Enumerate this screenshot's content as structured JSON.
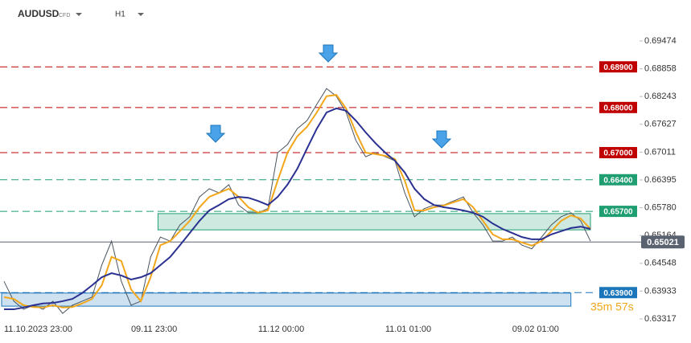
{
  "header": {
    "symbol": "AUDUSD",
    "badge": "CFD",
    "timeframe": "H1"
  },
  "chart_data": {
    "type": "line",
    "categories": [
      "11.10.2023 23:00",
      null,
      null,
      null,
      null,
      null,
      null,
      null,
      null,
      null,
      null,
      null,
      null,
      "09.11 23:00",
      null,
      null,
      null,
      null,
      null,
      null,
      null,
      null,
      null,
      null,
      null,
      null,
      "11.12 00:00",
      null,
      null,
      null,
      null,
      null,
      null,
      null,
      null,
      null,
      null,
      null,
      null,
      "11.01 01:00",
      null,
      null,
      null,
      null,
      null,
      null,
      null,
      null,
      null,
      null,
      null,
      null,
      "09.02 01:00",
      null,
      null,
      null,
      null,
      null,
      null,
      null,
      null
    ],
    "series": [
      {
        "color": "#4a5560",
        "values": [
          0.6415,
          0.6371,
          0.6353,
          0.6362,
          0.6353,
          0.6371,
          0.6344,
          0.6362,
          0.6371,
          0.638,
          0.6451,
          0.6504,
          0.6415,
          0.6362,
          0.6371,
          0.6469,
          0.6513,
          0.6504,
          0.654,
          0.6558,
          0.6602,
          0.662,
          0.6611,
          0.6629,
          0.6584,
          0.6567,
          0.6567,
          0.6576,
          0.67,
          0.6718,
          0.6753,
          0.6771,
          0.6807,
          0.6842,
          0.6825,
          0.6789,
          0.6727,
          0.6691,
          0.67,
          0.6691,
          0.6682,
          0.6611,
          0.6558,
          0.6576,
          0.6584,
          0.6584,
          0.6593,
          0.6602,
          0.6567,
          0.654,
          0.6504,
          0.6504,
          0.6513,
          0.6495,
          0.6487,
          0.6513,
          0.654,
          0.6558,
          0.6567,
          0.6549,
          0.6504
        ]
      },
      {
        "color": "#f2a71b",
        "values": [
          0.638,
          0.6376,
          0.6362,
          0.6358,
          0.6357,
          0.6362,
          0.6357,
          0.6358,
          0.6366,
          0.6376,
          0.6406,
          0.6469,
          0.646,
          0.6397,
          0.6371,
          0.6424,
          0.6495,
          0.6504,
          0.6526,
          0.6549,
          0.6579,
          0.6602,
          0.6611,
          0.662,
          0.6602,
          0.6579,
          0.6567,
          0.6572,
          0.6638,
          0.67,
          0.6736,
          0.6757,
          0.6789,
          0.6825,
          0.6828,
          0.6798,
          0.6745,
          0.67,
          0.6697,
          0.6693,
          0.6686,
          0.6638,
          0.6572,
          0.6572,
          0.6579,
          0.6583,
          0.659,
          0.6597,
          0.6579,
          0.6549,
          0.6519,
          0.6508,
          0.6508,
          0.6501,
          0.6494,
          0.6504,
          0.6526,
          0.6549,
          0.6561,
          0.6554,
          0.6531
        ]
      },
      {
        "color": "#2a3190",
        "values": [
          0.6353,
          0.6353,
          0.6357,
          0.6362,
          0.6366,
          0.6367,
          0.6371,
          0.6376,
          0.6389,
          0.6406,
          0.6424,
          0.6433,
          0.6428,
          0.6419,
          0.6424,
          0.6433,
          0.6451,
          0.6469,
          0.6495,
          0.6522,
          0.6549,
          0.6572,
          0.6584,
          0.6597,
          0.6602,
          0.66,
          0.6593,
          0.6584,
          0.6602,
          0.6629,
          0.6664,
          0.6709,
          0.6753,
          0.6789,
          0.6798,
          0.6793,
          0.6771,
          0.6745,
          0.6721,
          0.67,
          0.6682,
          0.6656,
          0.662,
          0.6597,
          0.6584,
          0.6579,
          0.6576,
          0.6572,
          0.6567,
          0.6558,
          0.6543,
          0.6531,
          0.6522,
          0.6513,
          0.6508,
          0.6508,
          0.6519,
          0.6526,
          0.6533,
          0.6536,
          0.6531
        ]
      }
    ],
    "ylim": [
      0.63264,
      0.70381
    ],
    "yticks": [
      0.69474,
      0.68858,
      0.68243,
      0.67627,
      0.67011,
      0.66395,
      {
        "value": 0.6578,
        "label": "0.65780"
      },
      0.65164,
      0.64548,
      0.63933,
      0.63317
    ],
    "grid": false,
    "levels": [
      {
        "value": 0.689,
        "label": "0.68900",
        "color": "#c00000"
      },
      {
        "value": 0.68,
        "label": "0.68000",
        "color": "#c00000"
      },
      {
        "value": 0.67,
        "label": "0.67000",
        "color": "#c00000"
      },
      {
        "value": 0.664,
        "label": "0.66400",
        "color": "#1f9e72"
      },
      {
        "value": 0.657,
        "label": "0.65700",
        "color": "#1f9e72"
      },
      {
        "value": 0.639,
        "label": "0.63900",
        "color": "#1b75bb"
      }
    ],
    "zones": [
      {
        "low": 0.6529,
        "high": 0.6565,
        "from": 16,
        "to": 60,
        "color": "#1f9e72"
      },
      {
        "low": 0.636,
        "high": 0.6389,
        "from": 0,
        "to": 58,
        "color": "#1b75bb"
      }
    ],
    "current_price": 0.65021,
    "countdown": "35m 57s"
  }
}
